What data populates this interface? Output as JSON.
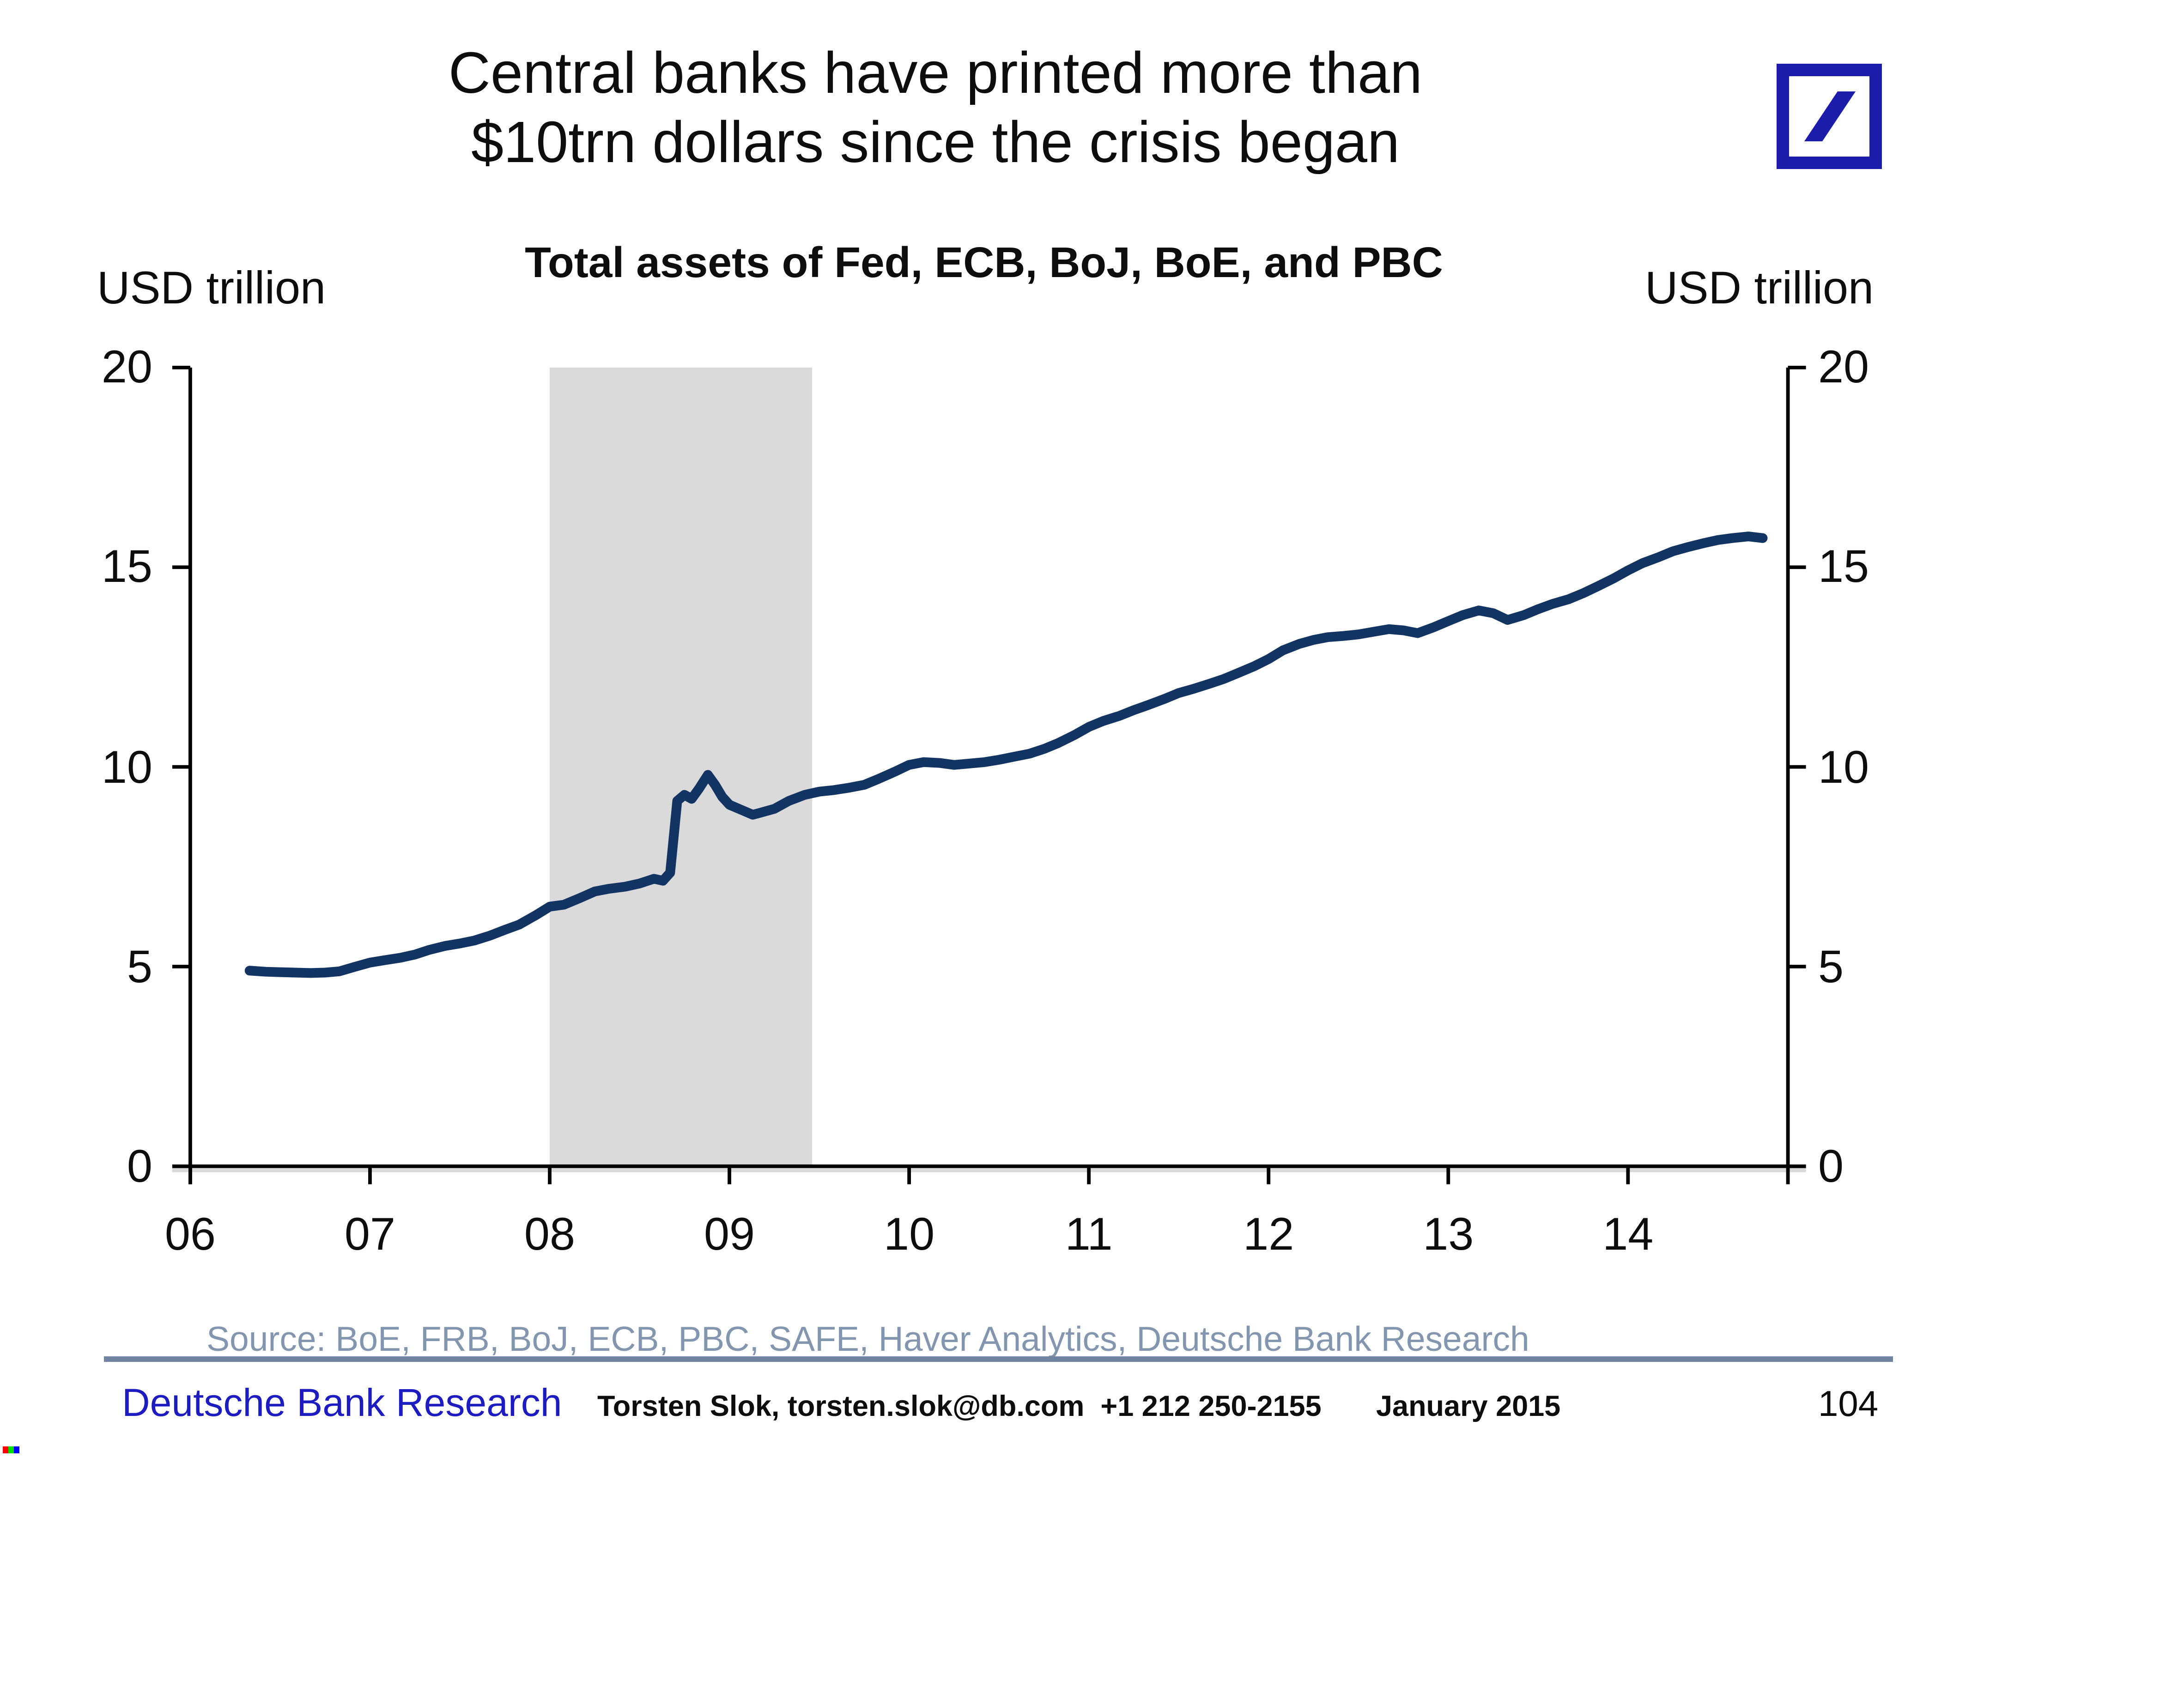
{
  "header": {
    "title_line1": "Central banks have printed more than",
    "title_line2": "$10trn dollars since the crisis began",
    "logo_name": "deutsche-bank-logo"
  },
  "colors": {
    "logo_blue": "#1b1ca9",
    "footer_brand_blue": "#1c1cc0",
    "source_gray_blue": "#8296af",
    "divider_blue_gray": "#6e84a0",
    "line_navy": "#113463",
    "recession_band_gray": "#dadada"
  },
  "chart_data": {
    "type": "line",
    "title": "Total assets of Fed, ECB, BoJ, BoE, and PBC",
    "ylabel_left": "USD trillion",
    "ylabel_right": "USD trillion",
    "xlim": [
      2006,
      2014.89
    ],
    "ylim": [
      0,
      20
    ],
    "y_ticks": [
      0,
      5,
      10,
      15,
      20
    ],
    "x_ticks": {
      "labels": [
        "06",
        "07",
        "08",
        "09",
        "10",
        "11",
        "12",
        "13",
        "14"
      ],
      "years": [
        2006,
        2007,
        2008,
        2009,
        2010,
        2011,
        2012,
        2013,
        2014
      ]
    },
    "grid": false,
    "legend": "none",
    "recession_band": {
      "from": 2008.0,
      "to": 2009.46
    },
    "line_color": "#113463",
    "band_color": "#dadada",
    "series": [
      {
        "name": "Total assets of Fed, ECB, BoJ, BoE, and PBC (USD trillion)",
        "points": [
          [
            2006.33,
            4.9
          ],
          [
            2006.42,
            4.87
          ],
          [
            2006.5,
            4.86
          ],
          [
            2006.58,
            4.85
          ],
          [
            2006.67,
            4.84
          ],
          [
            2006.75,
            4.85
          ],
          [
            2006.83,
            4.88
          ],
          [
            2006.92,
            5.0
          ],
          [
            2007.0,
            5.1
          ],
          [
            2007.08,
            5.16
          ],
          [
            2007.17,
            5.22
          ],
          [
            2007.25,
            5.3
          ],
          [
            2007.33,
            5.42
          ],
          [
            2007.42,
            5.52
          ],
          [
            2007.5,
            5.58
          ],
          [
            2007.58,
            5.65
          ],
          [
            2007.67,
            5.78
          ],
          [
            2007.75,
            5.92
          ],
          [
            2007.83,
            6.05
          ],
          [
            2007.92,
            6.28
          ],
          [
            2008.0,
            6.5
          ],
          [
            2008.08,
            6.55
          ],
          [
            2008.17,
            6.72
          ],
          [
            2008.25,
            6.88
          ],
          [
            2008.33,
            6.95
          ],
          [
            2008.42,
            7.0
          ],
          [
            2008.5,
            7.08
          ],
          [
            2008.58,
            7.2
          ],
          [
            2008.63,
            7.15
          ],
          [
            2008.67,
            7.35
          ],
          [
            2008.71,
            9.15
          ],
          [
            2008.75,
            9.3
          ],
          [
            2008.79,
            9.2
          ],
          [
            2008.83,
            9.45
          ],
          [
            2008.88,
            9.8
          ],
          [
            2008.92,
            9.55
          ],
          [
            2008.96,
            9.25
          ],
          [
            2009.0,
            9.05
          ],
          [
            2009.08,
            8.9
          ],
          [
            2009.13,
            8.8
          ],
          [
            2009.17,
            8.85
          ],
          [
            2009.25,
            8.95
          ],
          [
            2009.33,
            9.15
          ],
          [
            2009.42,
            9.3
          ],
          [
            2009.5,
            9.38
          ],
          [
            2009.58,
            9.42
          ],
          [
            2009.67,
            9.48
          ],
          [
            2009.75,
            9.55
          ],
          [
            2009.83,
            9.7
          ],
          [
            2009.92,
            9.88
          ],
          [
            2010.0,
            10.05
          ],
          [
            2010.08,
            10.12
          ],
          [
            2010.17,
            10.1
          ],
          [
            2010.25,
            10.05
          ],
          [
            2010.33,
            10.08
          ],
          [
            2010.42,
            10.12
          ],
          [
            2010.5,
            10.18
          ],
          [
            2010.58,
            10.25
          ],
          [
            2010.67,
            10.33
          ],
          [
            2010.75,
            10.45
          ],
          [
            2010.83,
            10.6
          ],
          [
            2010.92,
            10.8
          ],
          [
            2011.0,
            11.0
          ],
          [
            2011.08,
            11.15
          ],
          [
            2011.17,
            11.28
          ],
          [
            2011.25,
            11.42
          ],
          [
            2011.33,
            11.55
          ],
          [
            2011.42,
            11.7
          ],
          [
            2011.5,
            11.85
          ],
          [
            2011.58,
            11.95
          ],
          [
            2011.67,
            12.08
          ],
          [
            2011.75,
            12.2
          ],
          [
            2011.83,
            12.35
          ],
          [
            2011.92,
            12.52
          ],
          [
            2012.0,
            12.7
          ],
          [
            2012.08,
            12.92
          ],
          [
            2012.17,
            13.08
          ],
          [
            2012.25,
            13.18
          ],
          [
            2012.33,
            13.25
          ],
          [
            2012.42,
            13.28
          ],
          [
            2012.5,
            13.32
          ],
          [
            2012.58,
            13.38
          ],
          [
            2012.67,
            13.45
          ],
          [
            2012.75,
            13.42
          ],
          [
            2012.83,
            13.35
          ],
          [
            2012.92,
            13.5
          ],
          [
            2013.0,
            13.65
          ],
          [
            2013.08,
            13.8
          ],
          [
            2013.17,
            13.92
          ],
          [
            2013.25,
            13.85
          ],
          [
            2013.33,
            13.68
          ],
          [
            2013.42,
            13.8
          ],
          [
            2013.5,
            13.95
          ],
          [
            2013.58,
            14.08
          ],
          [
            2013.67,
            14.2
          ],
          [
            2013.75,
            14.35
          ],
          [
            2013.83,
            14.52
          ],
          [
            2013.92,
            14.72
          ],
          [
            2014.0,
            14.92
          ],
          [
            2014.08,
            15.1
          ],
          [
            2014.17,
            15.25
          ],
          [
            2014.25,
            15.4
          ],
          [
            2014.33,
            15.5
          ],
          [
            2014.42,
            15.6
          ],
          [
            2014.5,
            15.68
          ],
          [
            2014.58,
            15.73
          ],
          [
            2014.67,
            15.77
          ],
          [
            2014.75,
            15.73
          ]
        ]
      }
    ]
  },
  "source_line": "Source: BoE, FRB, BoJ, ECB, PBC, SAFE, Haver Analytics, Deutsche Bank Research",
  "footer": {
    "brand": "Deutsche Bank Research",
    "contact": "Torsten Slok, torsten.slok@db.com  +1 212 250-2155",
    "date": "January 2015",
    "page": "104"
  }
}
